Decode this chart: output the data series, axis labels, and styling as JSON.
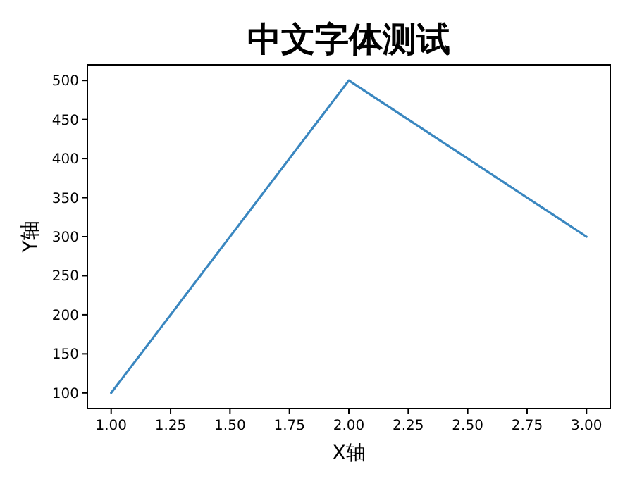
{
  "chart_data": {
    "type": "line",
    "title": "中文字体测试",
    "xlabel": "X轴",
    "ylabel": "Y轴",
    "x": [
      1,
      2,
      3
    ],
    "series": [
      {
        "color": "#3a87c0",
        "values": [
          100,
          500,
          300
        ]
      }
    ],
    "xlim": [
      0.9,
      3.1
    ],
    "ylim": [
      80,
      520
    ],
    "xticks": [
      {
        "value": 1,
        "label": "1.00"
      },
      {
        "value": 1.25,
        "label": "1.25"
      },
      {
        "value": 1.5,
        "label": "1.50"
      },
      {
        "value": 1.75,
        "label": "1.75"
      },
      {
        "value": 2,
        "label": "2.00"
      },
      {
        "value": 2.25,
        "label": "2.25"
      },
      {
        "value": 2.5,
        "label": "2.50"
      },
      {
        "value": 2.75,
        "label": "2.75"
      },
      {
        "value": 3,
        "label": "3.00"
      }
    ],
    "yticks": [
      100,
      150,
      200,
      250,
      300,
      350,
      400,
      450,
      500
    ]
  }
}
